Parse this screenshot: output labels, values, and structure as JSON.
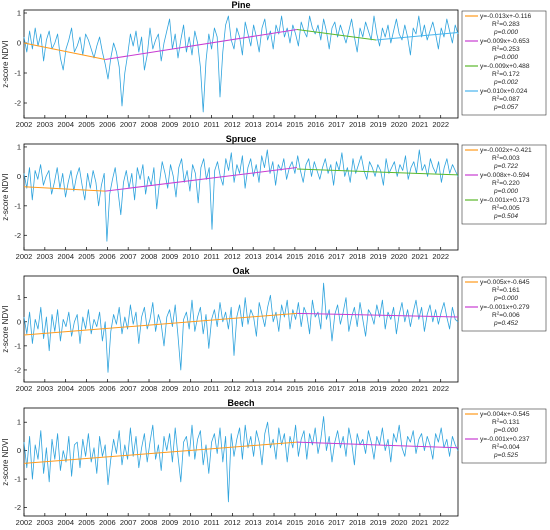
{
  "colors": {
    "ndvi": "#2ea3dd",
    "trend1": "#ff9a1c",
    "trend2": "#c83cd2",
    "trend3": "#59b82a",
    "trend4": "#47b4ee",
    "axis": "#000000",
    "grid": "#d9d9d9"
  },
  "chart_data": [
    {
      "type": "line",
      "title": "Pine",
      "ylabel": "z-score NDVI",
      "xlim": [
        2002,
        2022.83
      ],
      "ylim": [
        -2.5,
        1.1
      ],
      "xticks": [
        "2002",
        "2003",
        "2004",
        "2005",
        "2006",
        "2007",
        "2008",
        "2009",
        "2010",
        "2011",
        "2012",
        "2013",
        "2014",
        "2015",
        "2016",
        "2017",
        "2018",
        "2019",
        "2020",
        "2021",
        "2022"
      ],
      "yticks": [
        "-2",
        "-1",
        "0",
        "1"
      ],
      "ytick_values": [
        -2,
        -1,
        0,
        1
      ],
      "series": [
        {
          "values": [
            0.2,
            -0.3,
            0.4,
            -0.2,
            0.5,
            -0.1,
            0.3,
            -0.6,
            0.1,
            0.4,
            -0.2,
            0.0,
            0.3,
            -0.5,
            -0.9,
            -0.2,
            0.1,
            0.5,
            -0.3,
            -0.1,
            0.2,
            -0.4,
            0.3,
            0.1,
            -0.2,
            -0.5,
            -0.1,
            0.2,
            -0.3,
            -0.7,
            -1.2,
            -0.5,
            0.0,
            -0.3,
            -0.8,
            -2.1,
            -1.0,
            -0.4,
            0.3,
            -0.1,
            0.4,
            -0.3,
            0.2,
            -0.9,
            -0.4,
            0.5,
            -0.2,
            0.1,
            0.3,
            -0.6,
            0.0,
            0.4,
            0.8,
            -0.2,
            0.3,
            -0.5,
            0.1,
            0.6,
            -0.3,
            0.2,
            -0.4,
            0.4,
            0.0,
            -0.8,
            -2.3,
            -0.6,
            0.3,
            -0.2,
            0.5,
            0.2,
            -1.8,
            -0.3,
            0.6,
            0.9,
            0.1,
            -0.2,
            0.5,
            0.2,
            -0.4,
            0.7,
            0.3,
            -0.1,
            0.6,
            0.2,
            -0.3,
            0.5,
            0.8,
            0.1,
            0.4,
            -0.2,
            0.6,
            0.3,
            0.9,
            0.2,
            0.5,
            0.0,
            0.6,
            0.3,
            -0.1,
            0.7,
            0.4,
            0.2,
            0.9,
            0.5,
            0.3,
            0.6,
            0.1,
            0.8,
            0.4,
            -0.2,
            0.5,
            0.7,
            0.2,
            0.6,
            0.3,
            0.0,
            0.4,
            0.8,
            0.2,
            -0.3,
            0.5,
            0.2,
            0.7,
            0.4,
            0.1,
            0.9,
            0.3,
            -0.1,
            0.5,
            0.2,
            0.6,
            0.0,
            0.4,
            0.8,
            0.3,
            0.1,
            0.6,
            0.2,
            -0.4,
            0.5,
            0.3,
            0.9,
            0.2,
            0.6,
            0.1,
            0.4,
            0.7,
            0.3,
            -0.2,
            0.5,
            0.2,
            0.8,
            0.4,
            0.0,
            0.6,
            0.3
          ]
        },
        {
          "name": "y=-0.013x+-0.116",
          "kind": "trend",
          "x": [
            2002,
            2005.9
          ],
          "y": [
            0.0,
            -0.55
          ]
        },
        {
          "name": "y=0.009x+-0.653",
          "kind": "trend",
          "x": [
            2005.9,
            2015.1
          ],
          "y": [
            -0.55,
            0.45
          ]
        },
        {
          "name": "y=-0.009x+0.488",
          "kind": "trend",
          "x": [
            2015.1,
            2018.9
          ],
          "y": [
            0.45,
            0.1
          ]
        },
        {
          "name": "y=0.010x+0.024",
          "kind": "trend",
          "x": [
            2018.9,
            2022.83
          ],
          "y": [
            0.1,
            0.35
          ]
        }
      ],
      "legend": [
        {
          "eq": "y=-0.013x+-0.116",
          "r2": "=0.283",
          "p": "p=0.000",
          "color_key": "trend1"
        },
        {
          "eq": "y=0.009x+-0.653",
          "r2": "=0.253",
          "p": "p=0.000",
          "color_key": "trend2"
        },
        {
          "eq": "y=-0.009x+0.488",
          "r2": "=0.172",
          "p": "p=0.002",
          "color_key": "trend3"
        },
        {
          "eq": "y=0.010x+0.024",
          "r2": "=0.087",
          "p": "p=0.057",
          "color_key": "trend4"
        }
      ]
    },
    {
      "type": "line",
      "title": "Spruce",
      "ylabel": "z-score NDVI",
      "xlim": [
        2002,
        2022.83
      ],
      "ylim": [
        -2.5,
        1.1
      ],
      "xticks": [
        "2002",
        "2003",
        "2004",
        "2005",
        "2006",
        "2007",
        "2008",
        "2009",
        "2010",
        "2011",
        "2012",
        "2013",
        "2014",
        "2015",
        "2016",
        "2017",
        "2018",
        "2019",
        "2020",
        "2021",
        "2022"
      ],
      "yticks": [
        "-2",
        "-1",
        "0",
        "1"
      ],
      "ytick_values": [
        -2,
        -1,
        0,
        1
      ],
      "series": [
        {
          "values": [
            0.1,
            -0.4,
            0.3,
            -0.8,
            0.2,
            -0.1,
            0.4,
            -0.3,
            0.0,
            0.2,
            -0.6,
            -0.2,
            0.3,
            -0.4,
            0.1,
            -0.7,
            -0.2,
            0.2,
            -0.5,
            0.0,
            0.3,
            -0.3,
            -0.8,
            0.1,
            -0.4,
            0.2,
            -0.2,
            -1.0,
            -0.3,
            0.1,
            -2.2,
            -0.6,
            -0.1,
            0.3,
            -0.5,
            -1.3,
            -0.2,
            0.2,
            -0.4,
            0.1,
            -0.8,
            0.3,
            -0.1,
            0.4,
            -0.6,
            0.0,
            -0.3,
            0.3,
            -1.1,
            -0.2,
            0.5,
            0.1,
            -0.4,
            0.4,
            0.0,
            -0.7,
            0.3,
            0.6,
            -0.2,
            0.2,
            -0.5,
            0.4,
            0.1,
            -0.9,
            0.3,
            0.6,
            -0.1,
            0.3,
            -1.8,
            0.2,
            0.5,
            0.0,
            -0.3,
            0.6,
            0.2,
            0.8,
            -0.2,
            0.4,
            0.1,
            0.7,
            -0.4,
            0.3,
            0.6,
            0.0,
            0.4,
            -0.2,
            0.7,
            0.3,
            0.9,
            0.1,
            0.5,
            -0.3,
            0.4,
            0.2,
            0.6,
            -0.1,
            0.3,
            0.5,
            0.1,
            0.7,
            0.2,
            -0.2,
            0.4,
            0.6,
            0.0,
            0.5,
            0.2,
            -0.1,
            0.3,
            0.6,
            0.1,
            0.4,
            -0.3,
            0.5,
            0.2,
            0.8,
            0.0,
            0.3,
            -0.2,
            0.6,
            0.1,
            0.4,
            0.7,
            0.2,
            -0.1,
            0.5,
            0.3,
            0.0,
            0.4,
            0.2,
            -0.3,
            0.6,
            0.1,
            0.3,
            0.5,
            0.0,
            0.4,
            0.2,
            0.7,
            -0.1,
            0.3,
            0.5,
            0.1,
            0.9,
            0.2,
            0.4,
            0.0,
            0.6,
            0.3,
            0.1,
            0.5,
            -0.2,
            0.3,
            0.6,
            0.1,
            0.4,
            0.2,
            0.0
          ]
        },
        {
          "name": "y=-0.002x+-0.421",
          "kind": "trend",
          "x": [
            2002,
            2005.9
          ],
          "y": [
            -0.35,
            -0.5
          ]
        },
        {
          "name": "y=0.008x+-0.594",
          "kind": "trend",
          "x": [
            2005.9,
            2015.1
          ],
          "y": [
            -0.5,
            0.3
          ]
        },
        {
          "name": "y=-0.001x+0.173",
          "kind": "trend",
          "x": [
            2015.1,
            2022.83
          ],
          "y": [
            0.25,
            0.05
          ]
        }
      ],
      "legend": [
        {
          "eq": "y=-0.002x+-0.421",
          "r2": "=0.003",
          "p": "p=0.722",
          "color_key": "trend1"
        },
        {
          "eq": "y=0.008x+-0.594",
          "r2": "=0.220",
          "p": "p=0.000",
          "color_key": "trend2"
        },
        {
          "eq": "y=-0.001x+0.173",
          "r2": "=0.005",
          "p": "p=0.504",
          "color_key": "trend3"
        }
      ]
    },
    {
      "type": "line",
      "title": "Oak",
      "ylabel": "z-score NDVI",
      "xlim": [
        2002,
        2022.83
      ],
      "ylim": [
        -2.5,
        1.9
      ],
      "xticks": [
        "2002",
        "2003",
        "2004",
        "2005",
        "2006",
        "2007",
        "2008",
        "2009",
        "2010",
        "2011",
        "2012",
        "2013",
        "2014",
        "2015",
        "2016",
        "2017",
        "2018",
        "2019",
        "2020",
        "2021",
        "2022"
      ],
      "yticks": [
        "-2",
        "-1",
        "0",
        "1"
      ],
      "ytick_values": [
        -2,
        -1,
        0,
        1
      ],
      "series": [
        {
          "values": [
            0.2,
            -0.5,
            0.4,
            -0.9,
            0.1,
            -0.3,
            0.6,
            -0.7,
            0.2,
            -1.2,
            0.3,
            -0.4,
            0.5,
            -0.8,
            0.1,
            -0.2,
            0.4,
            -0.6,
            0.0,
            0.3,
            -0.9,
            0.2,
            -0.3,
            0.5,
            -0.5,
            0.1,
            -0.2,
            0.4,
            -0.8,
            0.0,
            -2.1,
            -0.4,
            0.3,
            -0.1,
            0.6,
            -0.5,
            0.2,
            -0.3,
            0.7,
            -0.1,
            0.4,
            -0.9,
            0.2,
            0.6,
            -0.3,
            0.1,
            0.8,
            -0.4,
            0.3,
            -0.1,
            -1.0,
            0.2,
            0.5,
            -0.2,
            0.7,
            -0.6,
            -2.0,
            0.1,
            0.4,
            -0.3,
            0.9,
            -0.4,
            0.2,
            0.6,
            -0.5,
            0.3,
            -1.1,
            0.1,
            0.5,
            -0.2,
            0.8,
            0.0,
            0.4,
            -0.3,
            0.6,
            -1.4,
            0.2,
            0.7,
            -0.2,
            1.0,
            -0.1,
            0.5,
            0.2,
            -0.6,
            0.8,
            0.3,
            -0.2,
            0.6,
            1.1,
            0.0,
            0.4,
            -0.4,
            0.7,
            0.2,
            0.9,
            -0.3,
            0.5,
            0.1,
            0.8,
            -0.2,
            0.6,
            0.3,
            -0.5,
            0.9,
            0.2,
            0.4,
            -0.3,
            1.6,
            0.1,
            0.5,
            -0.8,
            0.3,
            0.7,
            -0.1,
            0.4,
            1.0,
            -0.4,
            0.2,
            0.6,
            -0.2,
            0.8,
            0.1,
            -0.6,
            0.5,
            0.3,
            -0.1,
            0.7,
            0.2,
            0.9,
            -0.3,
            0.4,
            0.1,
            0.6,
            -0.5,
            0.3,
            0.8,
            0.0,
            0.5,
            -0.2,
            0.4,
            0.9,
            0.1,
            0.6,
            -0.4,
            0.3,
            0.7,
            0.0,
            0.5,
            -0.1,
            0.4,
            0.8,
            0.2,
            -0.3,
            0.6,
            0.1,
            0.0
          ]
        },
        {
          "name": "y=0.005x+-0.645",
          "kind": "trend",
          "x": [
            2002,
            2015.1
          ],
          "y": [
            -0.55,
            0.35
          ]
        },
        {
          "name": "y=-0.001x+0.279",
          "kind": "trend",
          "x": [
            2015.1,
            2022.83
          ],
          "y": [
            0.35,
            0.2
          ]
        }
      ],
      "legend": [
        {
          "eq": "y=0.005x+-0.645",
          "r2": "=0.161",
          "p": "p=0.000",
          "color_key": "trend1"
        },
        {
          "eq": "y=-0.001x+0.279",
          "r2": "=0.006",
          "p": "p=0.452",
          "color_key": "trend2"
        }
      ]
    },
    {
      "type": "line",
      "title": "Beech",
      "ylabel": "z-score NDVI",
      "xlim": [
        2002,
        2022.83
      ],
      "ylim": [
        -2.3,
        1.5
      ],
      "xticks": [
        "2002",
        "2003",
        "2004",
        "2005",
        "2006",
        "2007",
        "2008",
        "2009",
        "2010",
        "2011",
        "2012",
        "2013",
        "2014",
        "2015",
        "2016",
        "2017",
        "2018",
        "2019",
        "2020",
        "2021",
        "2022"
      ],
      "yticks": [
        "-2",
        "-1",
        "0",
        "1"
      ],
      "ytick_values": [
        -2,
        -1,
        0,
        1
      ],
      "series": [
        {
          "values": [
            0.3,
            -0.6,
            0.5,
            -1.0,
            0.2,
            -0.3,
            0.7,
            -0.8,
            0.1,
            -1.1,
            0.4,
            -0.3,
            0.6,
            -0.7,
            0.0,
            -0.4,
            0.5,
            -0.9,
            0.2,
            0.3,
            -0.6,
            0.4,
            -0.2,
            0.6,
            -0.4,
            0.1,
            -0.8,
            0.5,
            -0.2,
            0.2,
            -1.2,
            -0.3,
            0.4,
            -0.1,
            0.7,
            -0.5,
            0.2,
            -0.3,
            0.8,
            -0.2,
            0.5,
            -0.6,
            0.1,
            0.6,
            -0.4,
            0.3,
            0.9,
            -0.3,
            0.2,
            -0.7,
            0.5,
            0.0,
            0.6,
            -0.4,
            0.8,
            -0.2,
            -1.1,
            0.3,
            0.5,
            -0.2,
            0.9,
            -0.3,
            0.4,
            0.7,
            -0.5,
            0.2,
            -0.8,
            0.3,
            0.6,
            -0.1,
            0.8,
            -0.4,
            0.5,
            -1.8,
            0.6,
            -0.2,
            0.4,
            0.8,
            -0.3,
            0.9,
            0.1,
            0.5,
            -0.2,
            0.7,
            0.3,
            -0.5,
            0.6,
            1.0,
            0.1,
            0.4,
            -0.3,
            0.8,
            0.2,
            0.6,
            -0.4,
            0.5,
            0.1,
            0.9,
            -0.2,
            0.4,
            0.7,
            -0.3,
            0.6,
            0.2,
            0.8,
            -0.1,
            0.4,
            1.2,
            0.0,
            0.5,
            -0.4,
            0.3,
            0.7,
            0.1,
            0.5,
            -0.2,
            0.8,
            0.3,
            -0.5,
            0.6,
            0.2,
            0.4,
            -0.1,
            0.7,
            0.3,
            -0.3,
            0.5,
            0.2,
            0.8,
            0.0,
            0.4,
            -0.4,
            0.6,
            0.3,
            0.9,
            0.1,
            -0.2,
            0.5,
            0.3,
            0.7,
            -0.1,
            0.4,
            0.6,
            0.0,
            0.5,
            0.2,
            -0.3,
            0.6,
            0.3,
            0.8,
            0.1,
            0.4,
            -0.2,
            0.5,
            0.2,
            0.0
          ]
        },
        {
          "name": "y=0.004x+-0.545",
          "kind": "trend",
          "x": [
            2002,
            2015.1
          ],
          "y": [
            -0.45,
            0.3
          ]
        },
        {
          "name": "y=-0.001x+0.237",
          "kind": "trend",
          "x": [
            2015.1,
            2022.83
          ],
          "y": [
            0.3,
            0.1
          ]
        }
      ],
      "legend": [
        {
          "eq": "y=0.004x+-0.545",
          "r2": "=0.131",
          "p": "p=0.000",
          "color_key": "trend1"
        },
        {
          "eq": "y=-0.001x+0.237",
          "r2": "=0.004",
          "p": "p=0.525",
          "color_key": "trend2"
        }
      ]
    }
  ]
}
